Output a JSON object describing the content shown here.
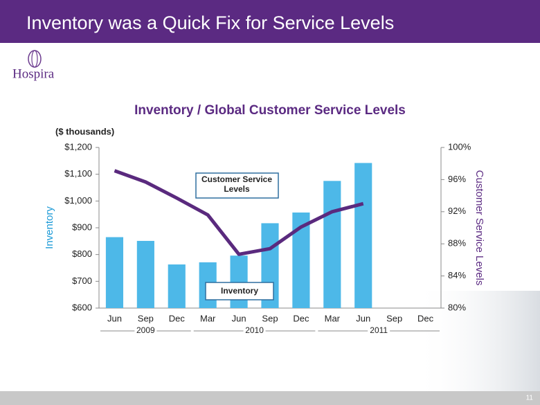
{
  "header": {
    "title": "Inventory was a Quick Fix for Service Levels"
  },
  "logo": "Hospira",
  "page_number": "11",
  "chart_data": {
    "type": "bar_line",
    "title": "Inventory / Global Customer Service Levels",
    "y_units": "($ thousands)",
    "ylabel": "Inventory",
    "y2label": "Customer Service Levels",
    "categories": [
      "Jun",
      "Sep",
      "Dec",
      "Mar",
      "Jun",
      "Sep",
      "Dec",
      "Mar",
      "Jun",
      "Sep",
      "Dec"
    ],
    "year_groups": [
      {
        "label": "2009",
        "start": 0,
        "end": 2
      },
      {
        "label": "2010",
        "start": 3,
        "end": 6
      },
      {
        "label": "2011",
        "start": 7,
        "end": 10
      }
    ],
    "series": [
      {
        "name": "Inventory",
        "color": "#4db8e8",
        "type": "bar",
        "axis": "y",
        "values": [
          865,
          851,
          763,
          771,
          796,
          917,
          957,
          1075,
          1142,
          null,
          null
        ]
      },
      {
        "name": "Customer Service Levels",
        "color": "#5a2a7e",
        "type": "line",
        "axis": "y2",
        "values": [
          97.1,
          95.7,
          93.7,
          91.6,
          86.7,
          87.4,
          90.1,
          92,
          93,
          null,
          null
        ]
      }
    ],
    "ylim": [
      600,
      1200
    ],
    "yticks": [
      {
        "value": 600,
        "label": "$600"
      },
      {
        "value": 700,
        "label": "$700"
      },
      {
        "value": 800,
        "label": "$800"
      },
      {
        "value": 900,
        "label": "$900"
      },
      {
        "value": 1000,
        "label": "$1,000"
      },
      {
        "value": 1100,
        "label": "$1,100"
      },
      {
        "value": 1200,
        "label": "$1,200"
      }
    ],
    "y2lim": [
      80,
      100
    ],
    "y2ticks": [
      {
        "value": 80,
        "label": "80%"
      },
      {
        "value": 84,
        "label": "84%"
      },
      {
        "value": 88,
        "label": "88%"
      },
      {
        "value": 92,
        "label": "92%"
      },
      {
        "value": 96,
        "label": "96%"
      },
      {
        "value": 100,
        "label": "100%"
      }
    ]
  }
}
